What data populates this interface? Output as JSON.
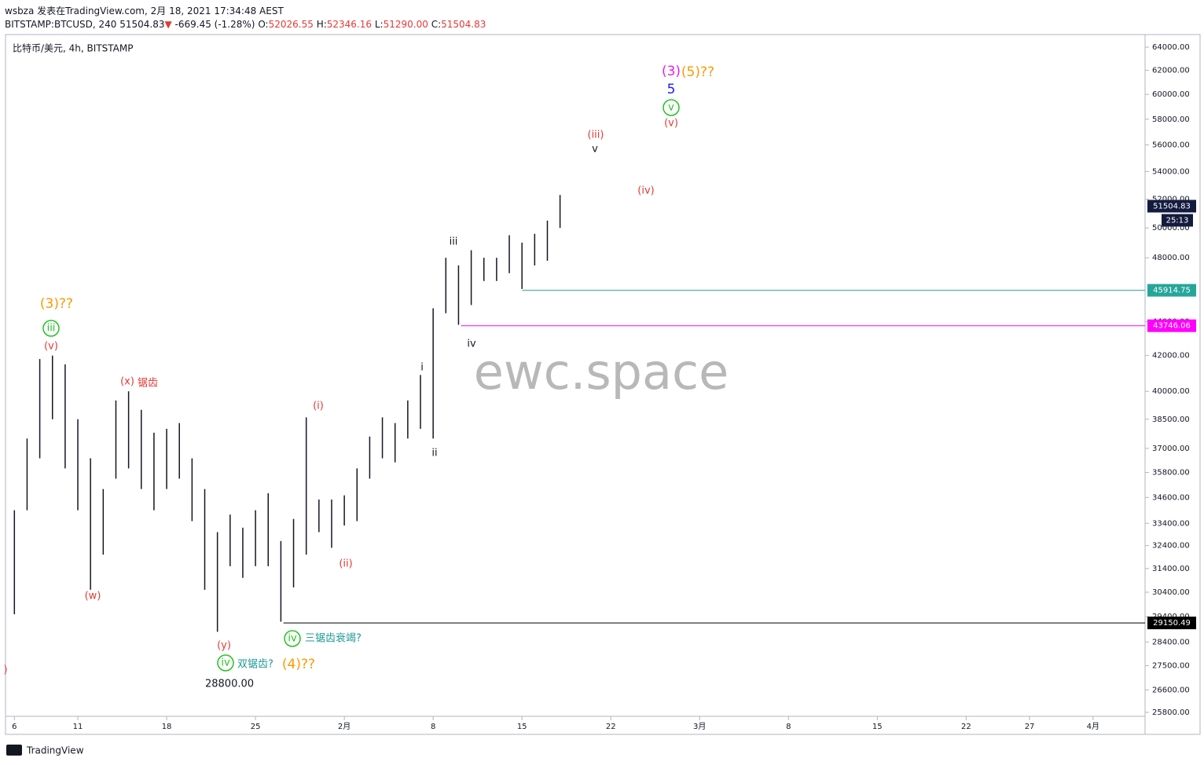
{
  "header": {
    "line1": "wsbza 发表在TradingView.com, 2月 18, 2021 17:34:48 AEST",
    "symbol_interval": "BITSTAMP:BTCUSD, 240",
    "last": "51504.83",
    "arrow": "▼",
    "change": "-669.45 (-1.28%)",
    "o_label": "O:",
    "o": "52026.55",
    "h_label": "H:",
    "h": "52346.16",
    "l_label": "L:",
    "l": "51290.00",
    "c_label": "C:",
    "c": "51504.83"
  },
  "chart_data": {
    "type": "ohlc",
    "title": "比特币/美元, 4h, BITSTAMP",
    "watermark": "ewc.space",
    "log_scale": true,
    "x": [
      6,
      7,
      8,
      9,
      10,
      11,
      12,
      13,
      14,
      15,
      16,
      17,
      18,
      19,
      20,
      21,
      22,
      23,
      24,
      25,
      26,
      27,
      28,
      29,
      30,
      31,
      32,
      33,
      34,
      35,
      36,
      37,
      38,
      39,
      40,
      41,
      42,
      43,
      44,
      45,
      46,
      47,
      48,
      49
    ],
    "high": [
      34000,
      37500,
      41800,
      42000,
      41500,
      38500,
      36500,
      35000,
      39500,
      40000,
      39000,
      37800,
      38000,
      38300,
      36500,
      35000,
      33000,
      33800,
      33200,
      34000,
      34800,
      32600,
      33600,
      38600,
      34500,
      34500,
      34700,
      36000,
      37600,
      38600,
      38300,
      39500,
      40900,
      44800,
      48000,
      47500,
      48500,
      48000,
      48000,
      49500,
      49000,
      49600,
      50500,
      52300
    ],
    "low": [
      29500,
      34000,
      36500,
      38500,
      36000,
      34000,
      30500,
      32000,
      35500,
      36000,
      35000,
      34000,
      35000,
      35500,
      33500,
      30500,
      28800,
      31500,
      31000,
      31500,
      31500,
      29200,
      30600,
      32000,
      33000,
      32300,
      33300,
      33500,
      35500,
      36500,
      36300,
      37500,
      38000,
      37500,
      44500,
      43800,
      45000,
      46500,
      46500,
      47000,
      46000,
      47500,
      47800,
      50000
    ],
    "color": "#131722",
    "xlim": [
      5.3,
      95.1
    ],
    "xticks": [
      {
        "value": 6,
        "label": "6"
      },
      {
        "value": 11,
        "label": "11"
      },
      {
        "value": 18,
        "label": "18"
      },
      {
        "value": 25,
        "label": "25"
      },
      {
        "value": 32,
        "label": "2月"
      },
      {
        "value": 39,
        "label": "8"
      },
      {
        "value": 46,
        "label": "15"
      },
      {
        "value": 53,
        "label": "22"
      },
      {
        "value": 60,
        "label": "3月"
      },
      {
        "value": 67,
        "label": "8"
      },
      {
        "value": 74,
        "label": "15"
      },
      {
        "value": 81,
        "label": "22"
      },
      {
        "value": 86,
        "label": "27"
      },
      {
        "value": 91,
        "label": "4月"
      }
    ],
    "ylim": [
      25660,
      65110
    ],
    "yticks": [
      {
        "value": 64000,
        "label": "64000.00"
      },
      {
        "value": 62000,
        "label": "62000.00"
      },
      {
        "value": 60000,
        "label": "60000.00"
      },
      {
        "value": 58000,
        "label": "58000.00"
      },
      {
        "value": 56000,
        "label": "56000.00"
      },
      {
        "value": 54000,
        "label": "54000.00"
      },
      {
        "value": 52000,
        "label": "52000.00"
      },
      {
        "value": 50000,
        "label": "50000.00"
      },
      {
        "value": 48000,
        "label": "48000.00"
      },
      {
        "value": 44000,
        "label": "44000.00"
      },
      {
        "value": 42000,
        "label": "42000.00"
      },
      {
        "value": 40000,
        "label": "40000.00"
      },
      {
        "value": 38500,
        "label": "38500.00"
      },
      {
        "value": 37000,
        "label": "37000.00"
      },
      {
        "value": 35800,
        "label": "35800.00"
      },
      {
        "value": 34600,
        "label": "34600.00"
      },
      {
        "value": 33400,
        "label": "33400.00"
      },
      {
        "value": 32400,
        "label": "32400.00"
      },
      {
        "value": 31400,
        "label": "31400.00"
      },
      {
        "value": 30400,
        "label": "30400.00"
      },
      {
        "value": 29400,
        "label": "29400.00"
      },
      {
        "value": 28400,
        "label": "28400.00"
      },
      {
        "value": 27500,
        "label": "27500.00"
      },
      {
        "value": 26600,
        "label": "26600.00"
      },
      {
        "value": 25800,
        "label": "25800.00"
      }
    ],
    "last_price": 51504.83,
    "last_color": "#131c3e",
    "countdown": "25:13",
    "levels": [
      {
        "value": 45914.75,
        "start": 46,
        "color": "#26a69a"
      },
      {
        "value": 43746.06,
        "start": 41.2,
        "color": "#ff00ff"
      },
      {
        "value": 29150.49,
        "start": 27.2,
        "color": "#000000"
      }
    ],
    "annotations": [
      {
        "text": "(3)??",
        "color": "#ff9800"
      },
      {
        "text": "iii",
        "color": "#22c322"
      },
      {
        "text": "(v)",
        "color": "#e53935"
      },
      {
        "text": "(x)",
        "color": "#e53935"
      },
      {
        "text": "锯齿",
        "color": "#e53935"
      },
      {
        "text": "(w)",
        "color": "#e53935"
      },
      {
        "text": "(y)",
        "color": "#e53935"
      },
      {
        "text": "iv",
        "color": "#22c322"
      },
      {
        "text": "双锯齿?",
        "color": "#1d9a96"
      },
      {
        "text": "28800.00",
        "color": "#131722"
      },
      {
        "text": "(4)??",
        "color": "#ff9800"
      },
      {
        "text": "iv",
        "color": "#22c322"
      },
      {
        "text": "三锯齿衰竭?",
        "color": "#1d9a96"
      },
      {
        "text": "(i)",
        "color": "#e53935"
      },
      {
        "text": "(ii)",
        "color": "#e53935"
      },
      {
        "text": "i",
        "color": "#131722"
      },
      {
        "text": "ii",
        "color": "#131722"
      },
      {
        "text": "iii",
        "color": "#131722"
      },
      {
        "text": "iv",
        "color": "#131722"
      },
      {
        "text": "(iii)",
        "color": "#e53935"
      },
      {
        "text": "v",
        "color": "#131722"
      },
      {
        "text": "(iv)",
        "color": "#e53935"
      },
      {
        "text": "(3)",
        "color": "#e91ee3"
      },
      {
        "text": "(5)??",
        "color": "#ff9800"
      },
      {
        "text": "5",
        "color": "#1a1aff"
      },
      {
        "text": "v",
        "color": "#22c322"
      },
      {
        "text": "(v)",
        "color": "#e53935"
      },
      {
        "text": ")",
        "color": "#e53935"
      }
    ]
  },
  "footer": {
    "brand": "TradingView"
  }
}
